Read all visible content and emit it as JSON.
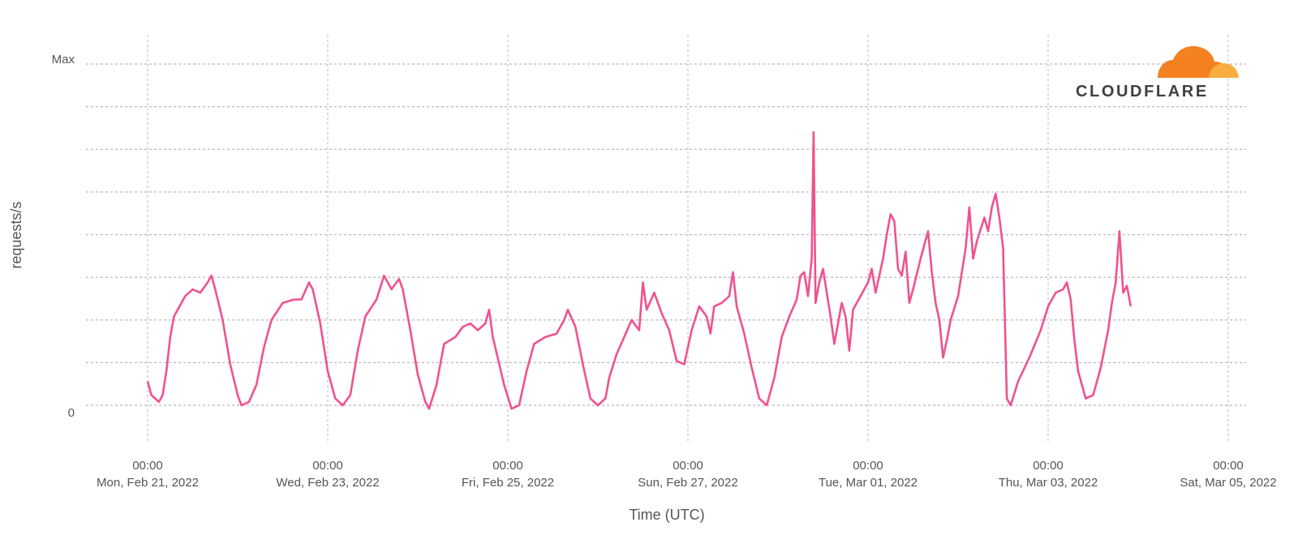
{
  "chart_data": {
    "type": "line",
    "title": "",
    "xlabel": "Time (UTC)",
    "ylabel": "requests/s",
    "y_tick_labels": [
      "0",
      "Max"
    ],
    "ylim": [
      0,
      1
    ],
    "xlim": [
      0,
      288
    ],
    "x_unit": "hours since 00:00 Mon, Feb 21, 2022",
    "x_ticks": [
      {
        "time": "00:00",
        "date": "Mon, Feb 21, 2022"
      },
      {
        "time": "00:00",
        "date": "Wed, Feb 23, 2022"
      },
      {
        "time": "00:00",
        "date": "Fri, Feb 25, 2022"
      },
      {
        "time": "00:00",
        "date": "Sun, Feb 27, 2022"
      },
      {
        "time": "00:00",
        "date": "Tue, Mar 01, 2022"
      },
      {
        "time": "00:00",
        "date": "Thu, Mar 03, 2022"
      },
      {
        "time": "00:00",
        "date": "Sat, Mar 05, 2022"
      }
    ],
    "grid": true,
    "series": [
      {
        "color": "#f0528e",
        "points": [
          [
            0,
            0.07
          ],
          [
            1,
            0.03
          ],
          [
            2,
            0.02
          ],
          [
            3,
            0.01
          ],
          [
            4,
            0.03
          ],
          [
            5,
            0.1
          ],
          [
            6,
            0.2
          ],
          [
            7,
            0.26
          ],
          [
            8,
            0.28
          ],
          [
            10,
            0.32
          ],
          [
            12,
            0.34
          ],
          [
            14,
            0.33
          ],
          [
            16,
            0.36
          ],
          [
            17,
            0.38
          ],
          [
            18,
            0.34
          ],
          [
            20,
            0.25
          ],
          [
            22,
            0.12
          ],
          [
            24,
            0.03
          ],
          [
            25,
            0.0
          ],
          [
            27,
            0.01
          ],
          [
            29,
            0.06
          ],
          [
            31,
            0.17
          ],
          [
            33,
            0.25
          ],
          [
            36,
            0.3
          ],
          [
            39,
            0.31
          ],
          [
            41,
            0.31
          ],
          [
            43,
            0.36
          ],
          [
            44,
            0.34
          ],
          [
            46,
            0.24
          ],
          [
            48,
            0.1
          ],
          [
            50,
            0.02
          ],
          [
            52,
            0.0
          ],
          [
            54,
            0.03
          ],
          [
            56,
            0.16
          ],
          [
            58,
            0.26
          ],
          [
            61,
            0.31
          ],
          [
            63,
            0.38
          ],
          [
            65,
            0.34
          ],
          [
            67,
            0.37
          ],
          [
            68,
            0.34
          ],
          [
            70,
            0.22
          ],
          [
            72,
            0.09
          ],
          [
            74,
            0.01
          ],
          [
            75,
            -0.01
          ],
          [
            77,
            0.06
          ],
          [
            79,
            0.18
          ],
          [
            82,
            0.2
          ],
          [
            84,
            0.23
          ],
          [
            86,
            0.24
          ],
          [
            88,
            0.22
          ],
          [
            90,
            0.24
          ],
          [
            91,
            0.28
          ],
          [
            92,
            0.2
          ],
          [
            95,
            0.06
          ],
          [
            97,
            -0.01
          ],
          [
            99,
            0.0
          ],
          [
            101,
            0.1
          ],
          [
            103,
            0.18
          ],
          [
            106,
            0.2
          ],
          [
            109,
            0.21
          ],
          [
            111,
            0.25
          ],
          [
            112,
            0.28
          ],
          [
            114,
            0.23
          ],
          [
            116,
            0.12
          ],
          [
            118,
            0.02
          ],
          [
            120,
            0.0
          ],
          [
            122,
            0.02
          ],
          [
            123,
            0.08
          ],
          [
            125,
            0.15
          ],
          [
            127,
            0.2
          ],
          [
            129,
            0.25
          ],
          [
            131,
            0.22
          ],
          [
            132,
            0.36
          ],
          [
            133,
            0.28
          ],
          [
            135,
            0.33
          ],
          [
            137,
            0.27
          ],
          [
            139,
            0.22
          ],
          [
            141,
            0.13
          ],
          [
            143,
            0.12
          ],
          [
            145,
            0.22
          ],
          [
            147,
            0.29
          ],
          [
            149,
            0.26
          ],
          [
            150,
            0.21
          ],
          [
            151,
            0.29
          ],
          [
            153,
            0.3
          ],
          [
            155,
            0.32
          ],
          [
            156,
            0.39
          ],
          [
            157,
            0.29
          ],
          [
            159,
            0.21
          ],
          [
            161,
            0.11
          ],
          [
            163,
            0.02
          ],
          [
            165,
            0.0
          ],
          [
            167,
            0.08
          ],
          [
            169,
            0.2
          ],
          [
            171,
            0.26
          ],
          [
            173,
            0.31
          ],
          [
            174,
            0.38
          ],
          [
            175,
            0.39
          ],
          [
            176,
            0.32
          ],
          [
            177,
            0.43
          ],
          [
            177.5,
            0.8
          ],
          [
            178,
            0.3
          ],
          [
            179,
            0.36
          ],
          [
            180,
            0.4
          ],
          [
            181,
            0.33
          ],
          [
            182,
            0.26
          ],
          [
            183,
            0.18
          ],
          [
            184,
            0.24
          ],
          [
            185,
            0.3
          ],
          [
            186,
            0.26
          ],
          [
            187,
            0.16
          ],
          [
            188,
            0.28
          ],
          [
            190,
            0.32
          ],
          [
            192,
            0.36
          ],
          [
            193,
            0.4
          ],
          [
            194,
            0.33
          ],
          [
            196,
            0.43
          ],
          [
            197,
            0.5
          ],
          [
            198,
            0.56
          ],
          [
            199,
            0.54
          ],
          [
            200,
            0.4
          ],
          [
            201,
            0.38
          ],
          [
            202,
            0.45
          ],
          [
            203,
            0.3
          ],
          [
            204,
            0.34
          ],
          [
            206,
            0.43
          ],
          [
            207,
            0.47
          ],
          [
            208,
            0.51
          ],
          [
            209,
            0.39
          ],
          [
            210,
            0.3
          ],
          [
            211,
            0.25
          ],
          [
            212,
            0.14
          ],
          [
            213,
            0.19
          ],
          [
            214,
            0.25
          ],
          [
            216,
            0.32
          ],
          [
            218,
            0.46
          ],
          [
            219,
            0.58
          ],
          [
            220,
            0.43
          ],
          [
            221,
            0.48
          ],
          [
            223,
            0.55
          ],
          [
            224,
            0.51
          ],
          [
            225,
            0.58
          ],
          [
            226,
            0.62
          ],
          [
            227,
            0.55
          ],
          [
            228,
            0.46
          ],
          [
            229,
            0.02
          ],
          [
            230,
            0.0
          ],
          [
            232,
            0.07
          ],
          [
            235,
            0.14
          ],
          [
            238,
            0.22
          ],
          [
            240,
            0.29
          ],
          [
            242,
            0.33
          ],
          [
            244,
            0.34
          ],
          [
            245,
            0.36
          ],
          [
            246,
            0.31
          ],
          [
            247,
            0.19
          ],
          [
            248,
            0.1
          ],
          [
            250,
            0.02
          ],
          [
            252,
            0.03
          ],
          [
            254,
            0.11
          ],
          [
            256,
            0.22
          ],
          [
            257,
            0.3
          ],
          [
            258,
            0.36
          ],
          [
            259,
            0.51
          ],
          [
            260,
            0.33
          ],
          [
            261,
            0.35
          ],
          [
            262,
            0.29
          ]
        ]
      }
    ]
  }
}
